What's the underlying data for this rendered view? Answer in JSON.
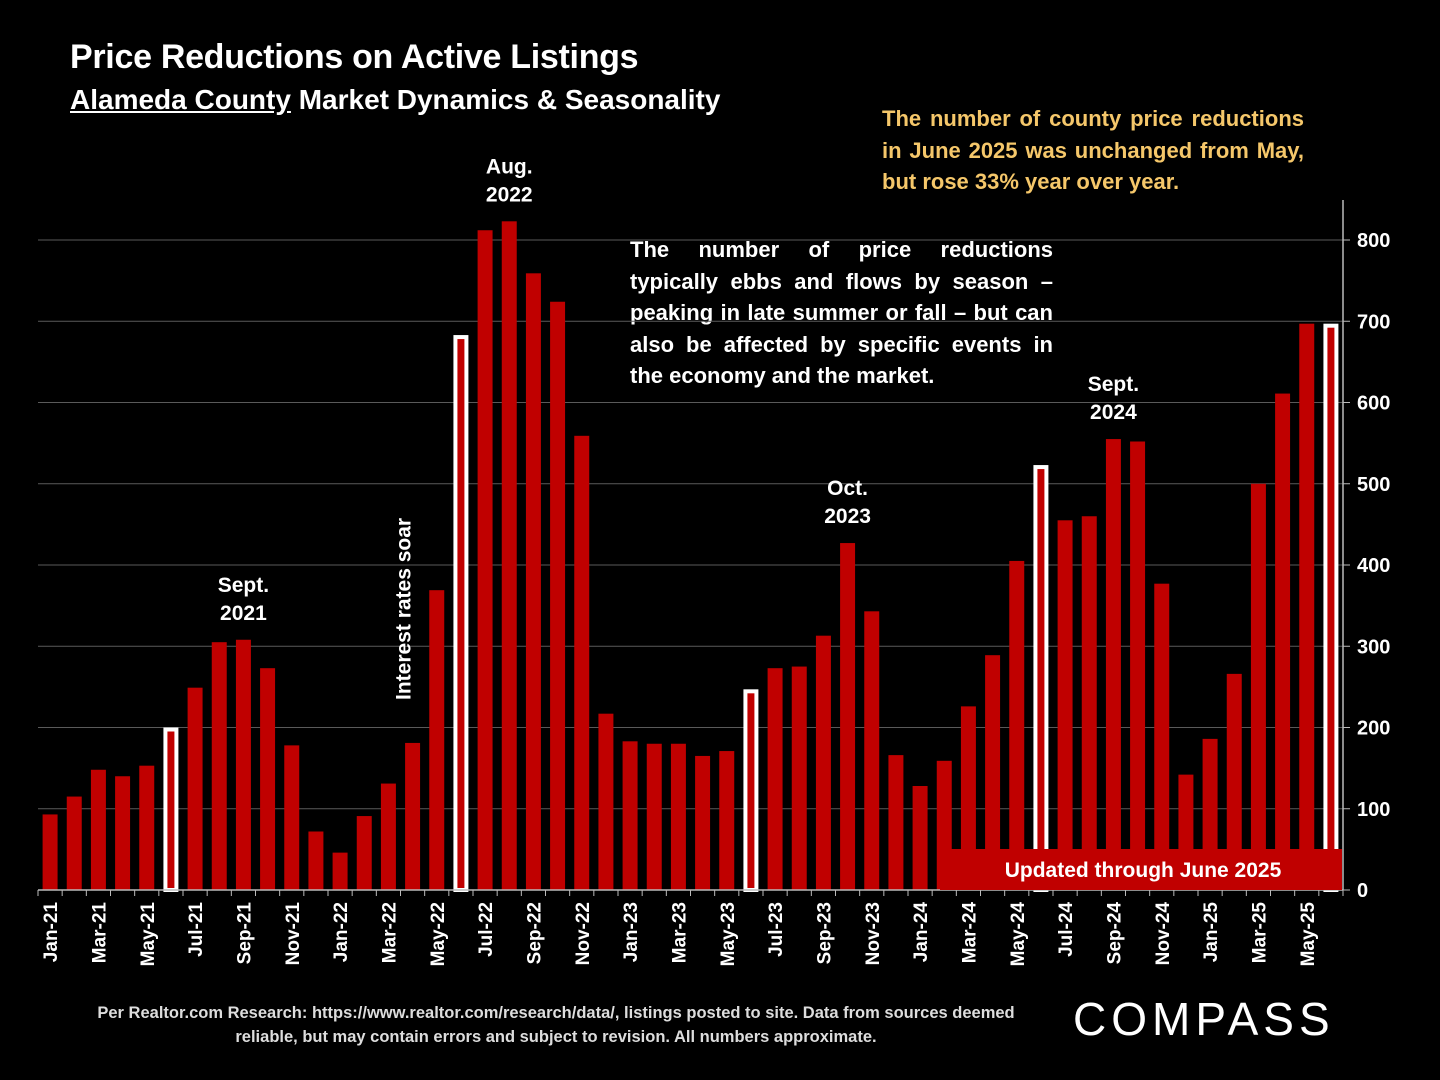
{
  "title": "Price Reductions on Active Listings",
  "subtitle_underlined": "Alameda County",
  "subtitle_rest": " Market Dynamics & Seasonality",
  "note_yellow": "The number of county price reductions in June 2025 was unchanged from May, but rose 33% year over year.",
  "note_white": "The number of price reductions typically ebbs and flows by season – peaking in late summer or fall – but can also be affected by specific events in the economy and the market.",
  "footer": "Per Realtor.com Research:  https://www.realtor.com/research/data/, listings posted to site. Data from sources deemed reliable, but may contain errors and subject to revision. All numbers approximate.",
  "logo_text": "COMPASS",
  "colors": {
    "bar": "#c00000",
    "highlight_bar": "#ffffff",
    "background": "#000000",
    "note_yellow": "#f5c76a",
    "banner": "#c00000"
  },
  "chart_data": {
    "type": "bar",
    "categories": [
      "Jan-21",
      "Feb-21",
      "Mar-21",
      "Apr-21",
      "May-21",
      "Jun-21",
      "Jul-21",
      "Aug-21",
      "Sep-21",
      "Oct-21",
      "Nov-21",
      "Dec-21",
      "Jan-22",
      "Feb-22",
      "Mar-22",
      "Apr-22",
      "May-22",
      "Jun-22",
      "Jul-22",
      "Aug-22",
      "Sep-22",
      "Oct-22",
      "Nov-22",
      "Dec-22",
      "Jan-23",
      "Feb-23",
      "Mar-23",
      "Apr-23",
      "May-23",
      "Jun-23",
      "Jul-23",
      "Aug-23",
      "Sep-23",
      "Oct-23",
      "Nov-23",
      "Dec-23",
      "Jan-24",
      "Feb-24",
      "Mar-24",
      "Apr-24",
      "May-24",
      "Jun-24",
      "Jul-24",
      "Aug-24",
      "Sep-24",
      "Oct-24",
      "Nov-24",
      "Dec-24",
      "Jan-25",
      "Feb-25",
      "Mar-25",
      "Apr-25",
      "May-25",
      "Jun-25"
    ],
    "tick_labels": [
      "Jan-21",
      "Mar-21",
      "May-21",
      "Jul-21",
      "Sep-21",
      "Nov-21",
      "Jan-22",
      "Mar-22",
      "May-22",
      "Jul-22",
      "Sep-22",
      "Nov-22",
      "Jan-23",
      "Mar-23",
      "May-23",
      "Jul-23",
      "Sep-23",
      "Nov-23",
      "Jan-24",
      "Mar-24",
      "May-24",
      "Jul-24",
      "Sep-24",
      "Nov-24",
      "Jan-25",
      "Mar-25",
      "May-25"
    ],
    "values": [
      93,
      115,
      148,
      140,
      153,
      200,
      249,
      305,
      308,
      273,
      178,
      72,
      46,
      91,
      131,
      181,
      369,
      683,
      812,
      823,
      759,
      724,
      559,
      217,
      183,
      180,
      180,
      165,
      171,
      247,
      273,
      275,
      313,
      427,
      343,
      166,
      128,
      159,
      226,
      289,
      405,
      523,
      455,
      460,
      555,
      552,
      377,
      142,
      186,
      266,
      500,
      611,
      697,
      697
    ],
    "highlight_indices": [
      5,
      17,
      29,
      41,
      53
    ],
    "ylim": [
      0,
      850
    ],
    "yticks": [
      0,
      100,
      200,
      300,
      400,
      500,
      600,
      700,
      800
    ],
    "y_axis_side": "right",
    "grid": true,
    "annotations": [
      {
        "lines": [
          "Sept.",
          "2021"
        ],
        "index": 8
      },
      {
        "lines": [
          "Aug.",
          "2022"
        ],
        "index": 19
      },
      {
        "lines": [
          "Oct.",
          "2023"
        ],
        "index": 33
      },
      {
        "lines": [
          "Sept.",
          "2024"
        ],
        "index": 44
      }
    ],
    "vertical_annotation": {
      "text": "Interest rates soar",
      "index": 15
    },
    "banner": "Updated through June 2025"
  }
}
